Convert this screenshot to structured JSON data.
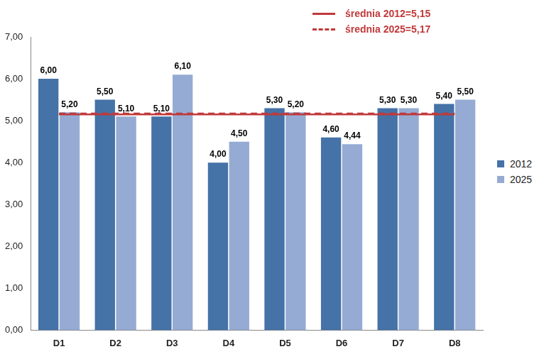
{
  "chart_data": {
    "type": "bar",
    "categories": [
      "D1",
      "D2",
      "D3",
      "D4",
      "D5",
      "D6",
      "D7",
      "D8"
    ],
    "series": [
      {
        "name": "2012",
        "type": "bar",
        "color": "#4572a7",
        "values": [
          6.0,
          5.5,
          5.1,
          4.0,
          5.3,
          4.6,
          5.3,
          5.4
        ],
        "value_labels": [
          "6,00",
          "5,50",
          "5,10",
          "4,00",
          "5,30",
          "4,60",
          "5,30",
          "5,40"
        ]
      },
      {
        "name": "2025",
        "type": "bar",
        "color": "#95abd3",
        "values": [
          5.2,
          5.1,
          6.1,
          4.5,
          5.2,
          4.44,
          5.3,
          5.5
        ],
        "value_labels": [
          "5,20",
          "5,10",
          "6,10",
          "4,50",
          "5,20",
          "4,44",
          "5,30",
          "5,50"
        ]
      },
      {
        "name": "średnia 2012=5,15",
        "type": "line",
        "color": "#c0393b",
        "line_style": "solid",
        "values": [
          5.15,
          5.15,
          5.15,
          5.15,
          5.15,
          5.15,
          5.15,
          5.15
        ]
      },
      {
        "name": "średnia 2025=5,17",
        "type": "line",
        "color": "#c0393b",
        "line_style": "dashed",
        "values": [
          5.17,
          5.17,
          5.17,
          5.17,
          5.17,
          5.17,
          5.17,
          5.17
        ]
      }
    ],
    "ylim": [
      0,
      7
    ],
    "yticks": [
      {
        "value": 0,
        "label": "0,00"
      },
      {
        "value": 1,
        "label": "1,00"
      },
      {
        "value": 2,
        "label": "2,00"
      },
      {
        "value": 3,
        "label": "3,00"
      },
      {
        "value": 4,
        "label": "4,00"
      },
      {
        "value": 5,
        "label": "5,00"
      },
      {
        "value": 6,
        "label": "6,00"
      },
      {
        "value": 7,
        "label": "7,00"
      }
    ],
    "grid": false,
    "legend": "right",
    "data_labels": true
  }
}
